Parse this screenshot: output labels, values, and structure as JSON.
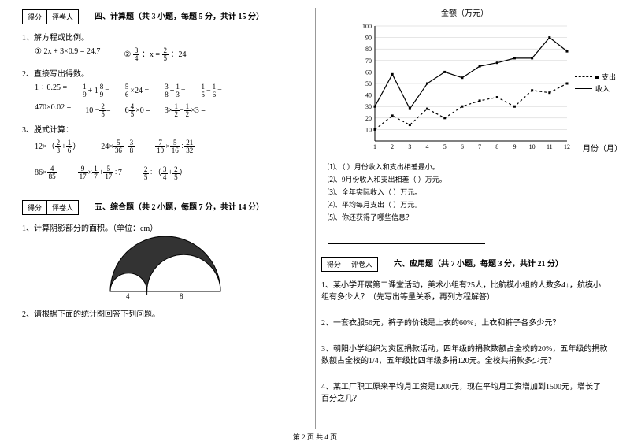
{
  "scorebox": {
    "score": "得分",
    "grader": "评卷人"
  },
  "sec4": {
    "title": "四、计算题（共 3 小题，每题 5 分，共计 15 分）",
    "q1": "1、解方程或比例。",
    "q1a": "① 2x + 3×0.9 = 24.7",
    "q1b_pre": "②",
    "q1b_mid": "：x =",
    "q1b_post": "：24",
    "q2": "2、直接写出得数。",
    "r1a": "1 ÷ 0.25 =",
    "r1b_pre": "",
    "r1b_mid": "+ 1",
    "r1b_post": "=",
    "r1c_pre": "",
    "r1c_mid": "×24 =",
    "r1d_pre": "",
    "r1d_mid": "+",
    "r1d_post": "=",
    "r1e_pre": "",
    "r1e_mid": "−",
    "r1e_post": "=",
    "r2a": "470×0.02 =",
    "r2b_pre": "10 −",
    "r2b_post": "=",
    "r2c_pre": "6",
    "r2c_mid": "×0 =",
    "r2d_pre": "3×",
    "r2d_mid": "−",
    "r2d_mid2": "×3 =",
    "q3": "3、脱式计算：",
    "r3a_pre": "12×（",
    "r3a_mid": "+",
    "r3a_post": "）",
    "r3b_pre": "24×",
    "r3b_mid": "−",
    "r3c_pre": "",
    "r3c_mid": "×",
    "r3c_mid2": "÷",
    "r4a_pre": "86×",
    "r4b_pre": "",
    "r4b_mid": "×",
    "r4b_mid2": "+",
    "r4b_post": "÷7",
    "r4c_pre": "",
    "r4c_mid": "÷（",
    "r4c_mid2": "+",
    "r4c_post": "）"
  },
  "sec5": {
    "title": "五、综合题（共 2 小题，每题 7 分，共计 14 分）",
    "q1": "1、计算阴影部分的面积。（单位：cm）",
    "fig_l": "4",
    "fig_r": "8",
    "q2": "2、请根据下面的统计图回答下列问题。"
  },
  "chart": {
    "ytitle": "金额（万元）",
    "xlabel": "月份（月）",
    "yticks": [
      "100",
      "90",
      "80",
      "70",
      "60",
      "50",
      "40",
      "30",
      "20",
      "10"
    ],
    "xticks": [
      "1",
      "2",
      "3",
      "4",
      "5",
      "6",
      "7",
      "8",
      "9",
      "10",
      "11",
      "12"
    ],
    "legend": {
      "a": "支出",
      "b": "收入"
    },
    "income": [
      30,
      58,
      28,
      50,
      60,
      55,
      65,
      68,
      72,
      72,
      90,
      78
    ],
    "expense": [
      10,
      22,
      14,
      28,
      20,
      30,
      35,
      38,
      30,
      44,
      42,
      50
    ],
    "colors": {
      "axis": "#000000",
      "grid": "#cccccc",
      "line": "#000000"
    },
    "xlim": [
      1,
      12
    ],
    "ylim": [
      0,
      100
    ]
  },
  "chartq": {
    "q1": "⑴、（   ）月份收入和支出相差最小。",
    "q2": "⑵、9月份收入和支出相差（   ）万元。",
    "q3": "⑶、全年实际收入（   ）万元。",
    "q4": "⑷、平均每月支出（   ）万元。",
    "q5": "⑸、你还获得了哪些信息？"
  },
  "sec6": {
    "title": "六、应用题（共 7 小题，每题 3 分，共计 21 分）",
    "q1": "1、某小学开展第二课堂活动，美术小组有25人，比航模小组的人数多4↓，航模小组有多少人？（先写出等量关系，再列方程解答）",
    "q2": "2、一套衣服56元，裤子的价钱是上衣的60%，上衣和裤子各多少元？",
    "q3": "3、朝阳小学组织为灾区捐款活动，四年级的捐款数额占全校的20%，五年级的捐款数额占全校的1/4，五年级比四年级多捐120元。全校共捐款多少元？",
    "q4": "4、某工厂职工原来平均月工资是1200元，现在平均月工资增加到1500元，增长了百分之几？"
  },
  "footer": "第 2 页 共 4 页"
}
